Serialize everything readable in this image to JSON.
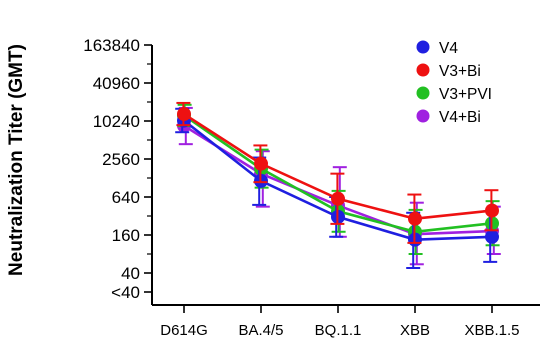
{
  "chart_data": {
    "type": "line",
    "ylabel": "Neutralization Titer (GMT)",
    "xlabel": "",
    "y_scale": "log2",
    "ylim": [
      20,
      163840
    ],
    "categories": [
      "D614G",
      "BA.4/5",
      "BQ.1.1",
      "XBB",
      "XBB.1.5"
    ],
    "y_ticks": [
      {
        "value": 20,
        "label": "<40"
      },
      {
        "value": 40,
        "label": "40"
      },
      {
        "value": 160,
        "label": "160"
      },
      {
        "value": 640,
        "label": "640"
      },
      {
        "value": 2560,
        "label": "2560"
      },
      {
        "value": 10240,
        "label": "10240"
      },
      {
        "value": 40960,
        "label": "40960"
      },
      {
        "value": 163840,
        "label": "163840"
      }
    ],
    "legend_position": "top-right",
    "series": [
      {
        "name": "V4",
        "color": "#1f1fe0",
        "values": [
          10400,
          1150,
          310,
          135,
          150
        ],
        "err_low": [
          6800,
          480,
          150,
          48,
          60
        ],
        "err_high": [
          16000,
          2700,
          640,
          360,
          380
        ]
      },
      {
        "name": "V3+Bi",
        "color": "#ee1111",
        "values": [
          13200,
          2160,
          600,
          290,
          390
        ],
        "err_low": [
          8800,
          1100,
          240,
          120,
          190
        ],
        "err_high": [
          19800,
          4200,
          1500,
          700,
          820
        ]
      },
      {
        "name": "V3+PVI",
        "color": "#22c022",
        "values": [
          12600,
          1800,
          380,
          180,
          245
        ],
        "err_low": [
          8500,
          900,
          180,
          80,
          110
        ],
        "err_high": [
          18500,
          3600,
          800,
          400,
          550
        ]
      },
      {
        "name": "V4+Bi",
        "color": "#a020e0",
        "values": [
          8600,
          1500,
          470,
          165,
          185
        ],
        "err_low": [
          4400,
          450,
          150,
          55,
          80
        ],
        "err_high": [
          16500,
          3400,
          1900,
          520,
          450
        ]
      }
    ]
  }
}
